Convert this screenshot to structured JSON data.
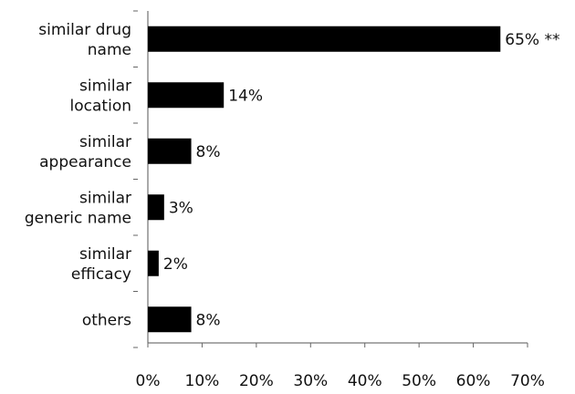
{
  "chart_data": {
    "type": "bar",
    "orientation": "horizontal",
    "categories": [
      [
        "similar drug",
        "name"
      ],
      [
        "similar",
        "location"
      ],
      [
        "similar",
        "appearance"
      ],
      [
        "similar",
        "generic name"
      ],
      [
        "similar",
        "efficacy"
      ],
      [
        "others"
      ]
    ],
    "values": [
      65,
      14,
      8,
      3,
      2,
      8
    ],
    "value_labels": [
      "65% **",
      "14%",
      "8%",
      "3%",
      "2%",
      "8%"
    ],
    "xlim": [
      0,
      70
    ],
    "xticks": [
      0,
      10,
      20,
      30,
      40,
      50,
      60,
      70
    ],
    "xtick_labels": [
      "0%",
      "10%",
      "20%",
      "30%",
      "40%",
      "50%",
      "60%",
      "70%"
    ],
    "title": "",
    "xlabel": "",
    "ylabel": "",
    "grid": false,
    "bar_color": "#000000"
  }
}
